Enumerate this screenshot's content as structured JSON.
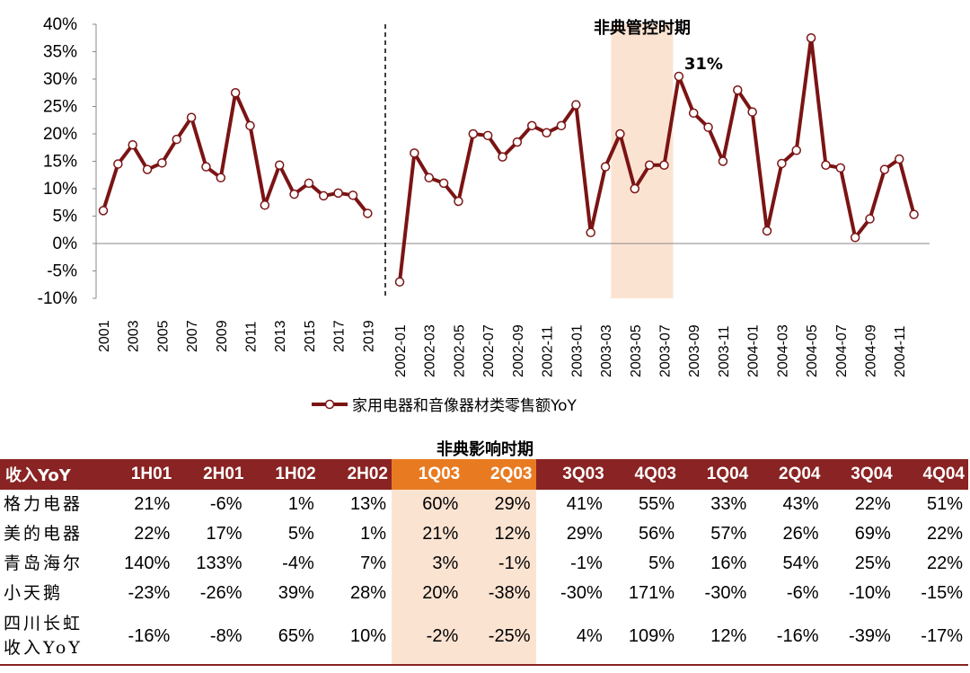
{
  "chart_data": {
    "type": "line",
    "y_ticks": [
      "40%",
      "35%",
      "30%",
      "25%",
      "20%",
      "15%",
      "10%",
      "5%",
      "0%",
      "-5%",
      "-10%"
    ],
    "ylim": [
      -10,
      40
    ],
    "left_panel": {
      "x": [
        2001,
        2002,
        2003,
        2004,
        2005,
        2006,
        2007,
        2008,
        2009,
        2010,
        2011,
        2012,
        2013,
        2014,
        2015,
        2016,
        2017,
        2018,
        2019
      ],
      "x_labels": [
        "2001",
        "2003",
        "2005",
        "2007",
        "2009",
        "2011",
        "2013",
        "2015",
        "2017",
        "2019"
      ],
      "values": [
        6,
        14.5,
        18,
        13.5,
        14.7,
        19,
        23,
        14,
        12,
        27.5,
        21.5,
        7,
        14.3,
        9,
        11,
        8.7,
        9.2,
        8.8,
        5.5
      ]
    },
    "right_panel": {
      "x": [
        "2002-01",
        "2002-02",
        "2002-03",
        "2002-04",
        "2002-05",
        "2002-06",
        "2002-07",
        "2002-08",
        "2002-09",
        "2002-10",
        "2002-11",
        "2002-12",
        "2003-01",
        "2003-02",
        "2003-03",
        "2003-04",
        "2003-05",
        "2003-06",
        "2003-07",
        "2003-08",
        "2003-09",
        "2003-10",
        "2003-11",
        "2003-12",
        "2004-01",
        "2004-02",
        "2004-03",
        "2004-04",
        "2004-05",
        "2004-06",
        "2004-07",
        "2004-08",
        "2004-09",
        "2004-10",
        "2004-11",
        "2004-12"
      ],
      "x_labels": [
        "2002-01",
        "2002-03",
        "2002-05",
        "2002-07",
        "2002-09",
        "2002-11",
        "2003-01",
        "2003-03",
        "2003-05",
        "2003-07",
        "2003-09",
        "2003-11",
        "2004-01",
        "2004-03",
        "2004-05",
        "2004-07",
        "2004-09",
        "2004-11"
      ],
      "values": [
        -7,
        16.5,
        12,
        11,
        7.7,
        20,
        19.7,
        15.8,
        18.5,
        21.5,
        20.2,
        21.5,
        25.3,
        2,
        14,
        20,
        10,
        14.3,
        14.3,
        30.5,
        23.8,
        21.2,
        15,
        28,
        24,
        2.3,
        14.6,
        17,
        37.5,
        14.3,
        13.8,
        1.1,
        4.5,
        13.5,
        15.4,
        5.3
      ]
    },
    "highlight_band": [
      "2003-04",
      "2003-07"
    ],
    "highlight_label": "非典管控时期",
    "peak_label": "31%",
    "series_name": "家用电器和音像器材类零售额YoY",
    "colors": {
      "line": "#7b1414",
      "band": "#fbe3d2",
      "marker_fill": "#ffffff"
    }
  },
  "table": {
    "title": "非典影响时期",
    "headers": [
      "收入YoY",
      "1H01",
      "2H01",
      "1H02",
      "2H02",
      "1Q03",
      "2Q03",
      "3Q03",
      "4Q03",
      "1Q04",
      "2Q04",
      "3Q04",
      "4Q04"
    ],
    "highlight_cols": [
      5,
      6
    ],
    "rows": [
      {
        "name": [
          "格力电器"
        ],
        "values": [
          "21%",
          "-6%",
          "1%",
          "13%",
          "60%",
          "29%",
          "41%",
          "55%",
          "33%",
          "43%",
          "22%",
          "51%"
        ]
      },
      {
        "name": [
          "美的电器"
        ],
        "values": [
          "22%",
          "17%",
          "5%",
          "1%",
          "21%",
          "12%",
          "29%",
          "56%",
          "57%",
          "26%",
          "69%",
          "22%"
        ]
      },
      {
        "name": [
          "青岛海尔"
        ],
        "values": [
          "140%",
          "133%",
          "-4%",
          "7%",
          "3%",
          "-1%",
          "-1%",
          "5%",
          "16%",
          "54%",
          "25%",
          "22%"
        ]
      },
      {
        "name": [
          "小天鹅"
        ],
        "values": [
          "-23%",
          "-26%",
          "39%",
          "28%",
          "20%",
          "-38%",
          "-30%",
          "171%",
          "-30%",
          "-6%",
          "-10%",
          "-15%"
        ]
      },
      {
        "name": [
          "四川长虹",
          "收入YoY"
        ],
        "values": [
          "-16%",
          "-8%",
          "65%",
          "10%",
          "-2%",
          "-25%",
          "4%",
          "109%",
          "12%",
          "-16%",
          "-39%",
          "-17%"
        ]
      }
    ],
    "colors": {
      "header": "#8a2323",
      "header_highlight": "#e87b22",
      "cell_highlight": "#fbe3d2"
    }
  }
}
